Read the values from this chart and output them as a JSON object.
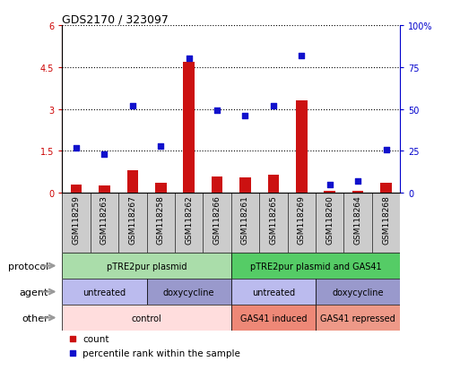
{
  "title": "GDS2170 / 323097",
  "samples": [
    "GSM118259",
    "GSM118263",
    "GSM118267",
    "GSM118258",
    "GSM118262",
    "GSM118266",
    "GSM118261",
    "GSM118265",
    "GSM118269",
    "GSM118260",
    "GSM118264",
    "GSM118268"
  ],
  "bar_values": [
    0.3,
    0.25,
    0.8,
    0.35,
    4.7,
    0.6,
    0.55,
    0.65,
    3.3,
    0.08,
    0.08,
    0.35
  ],
  "dot_values": [
    27,
    23,
    52,
    28,
    80,
    49,
    46,
    52,
    82,
    5,
    7,
    26
  ],
  "ylim_left": [
    0,
    6
  ],
  "ylim_right": [
    0,
    100
  ],
  "yticks_left": [
    0,
    1.5,
    3.0,
    4.5,
    6.0
  ],
  "yticks_right": [
    0,
    25,
    50,
    75,
    100
  ],
  "ytick_labels_left": [
    "0",
    "1.5",
    "3",
    "4.5",
    "6"
  ],
  "ytick_labels_right": [
    "0",
    "25",
    "50",
    "75",
    "100%"
  ],
  "bar_color": "#cc1111",
  "dot_color": "#1111cc",
  "protocol_row": {
    "label": "protocol",
    "segments": [
      {
        "text": "pTRE2pur plasmid",
        "start": 0,
        "end": 6,
        "color": "#aaddaa"
      },
      {
        "text": "pTRE2pur plasmid and GAS41",
        "start": 6,
        "end": 12,
        "color": "#55cc66"
      }
    ]
  },
  "agent_row": {
    "label": "agent",
    "segments": [
      {
        "text": "untreated",
        "start": 0,
        "end": 3,
        "color": "#bbbbee"
      },
      {
        "text": "doxycycline",
        "start": 3,
        "end": 6,
        "color": "#9999cc"
      },
      {
        "text": "untreated",
        "start": 6,
        "end": 9,
        "color": "#bbbbee"
      },
      {
        "text": "doxycycline",
        "start": 9,
        "end": 12,
        "color": "#9999cc"
      }
    ]
  },
  "other_row": {
    "label": "other",
    "segments": [
      {
        "text": "control",
        "start": 0,
        "end": 6,
        "color": "#ffdddd"
      },
      {
        "text": "GAS41 induced",
        "start": 6,
        "end": 9,
        "color": "#ee8877"
      },
      {
        "text": "GAS41 repressed",
        "start": 9,
        "end": 12,
        "color": "#ee9988"
      }
    ]
  },
  "legend_bar_label": "count",
  "legend_dot_label": "percentile rank within the sample",
  "bg_color": "#ffffff",
  "xlabel_bg": "#cccccc",
  "arrow_color": "#999999"
}
